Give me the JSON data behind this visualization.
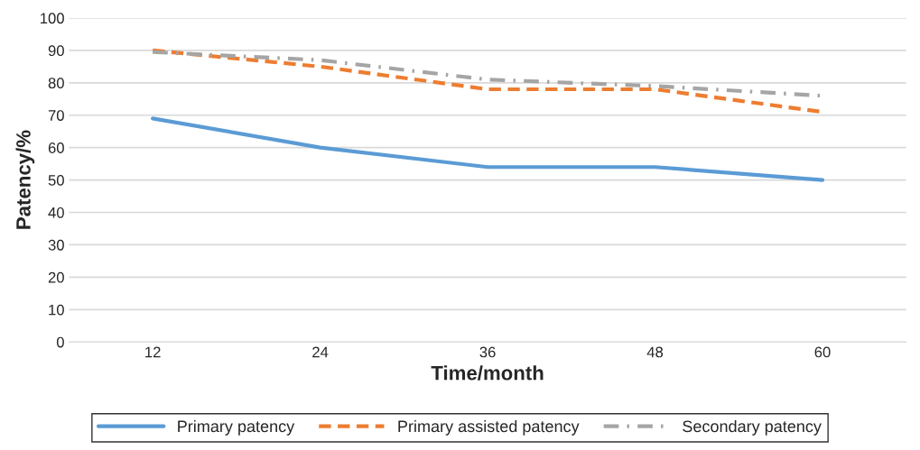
{
  "chart_data": {
    "type": "line",
    "xlabel": "Time/month",
    "ylabel": "Patency/%",
    "categories": [
      "12",
      "24",
      "36",
      "48",
      "60"
    ],
    "series": [
      {
        "name": "Primary patency",
        "color": "#5b9bd5",
        "line_style": "solid",
        "values": [
          69,
          60,
          54,
          54,
          50
        ]
      },
      {
        "name": "Primary assisted patency",
        "color": "#ed7d31",
        "line_style": "dashed",
        "values": [
          90,
          85,
          78,
          78,
          71
        ]
      },
      {
        "name": "Secondary patency",
        "color": "#a5a5a5",
        "line_style": "dotted",
        "values": [
          89.5,
          87,
          81,
          79,
          76
        ]
      }
    ],
    "ylim": [
      0,
      100
    ],
    "yticks": [
      0,
      10,
      20,
      30,
      40,
      50,
      60,
      70,
      80,
      90,
      100
    ],
    "grid": "y",
    "legend": "bottom",
    "marker": "none"
  }
}
